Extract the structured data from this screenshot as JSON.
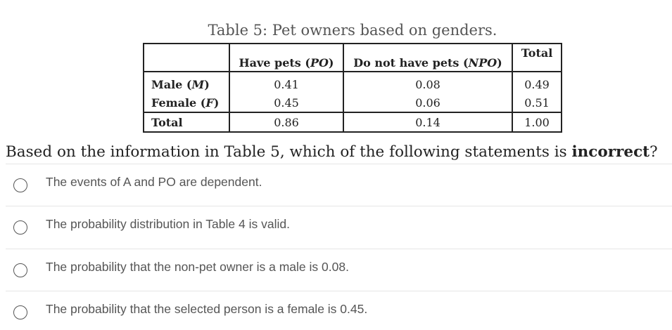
{
  "table": {
    "caption": "Table 5: Pet owners based on genders.",
    "headers": {
      "col1_text": "Have pets (",
      "col1_abbr": "PO",
      "col1_close": ")",
      "col2_text": "Do not have pets (",
      "col2_abbr": "NPO",
      "col2_close": ")",
      "col3": "Total"
    },
    "rows": [
      {
        "label_text": "Male (",
        "label_abbr": "M",
        "label_close": ")",
        "cells": [
          "0.41",
          "0.08",
          "0.49"
        ]
      },
      {
        "label_text": "Female (",
        "label_abbr": "F",
        "label_close": ")",
        "cells": [
          "0.45",
          "0.06",
          "0.51"
        ]
      },
      {
        "label_text": "Total",
        "label_abbr": "",
        "label_close": "",
        "cells": [
          "0.86",
          "0.14",
          "1.00"
        ]
      }
    ]
  },
  "question": {
    "prefix": "Based on the information in Table 5, which of the following statements is ",
    "emphasis": "incorrect",
    "suffix": "?"
  },
  "options": [
    {
      "label": "The events of A and PO are dependent."
    },
    {
      "label": "The probability distribution in Table 4 is valid."
    },
    {
      "label": "The probability that the non-pet owner is a male is 0.08."
    },
    {
      "label": "The probability that the selected person is a female is 0.45."
    }
  ]
}
